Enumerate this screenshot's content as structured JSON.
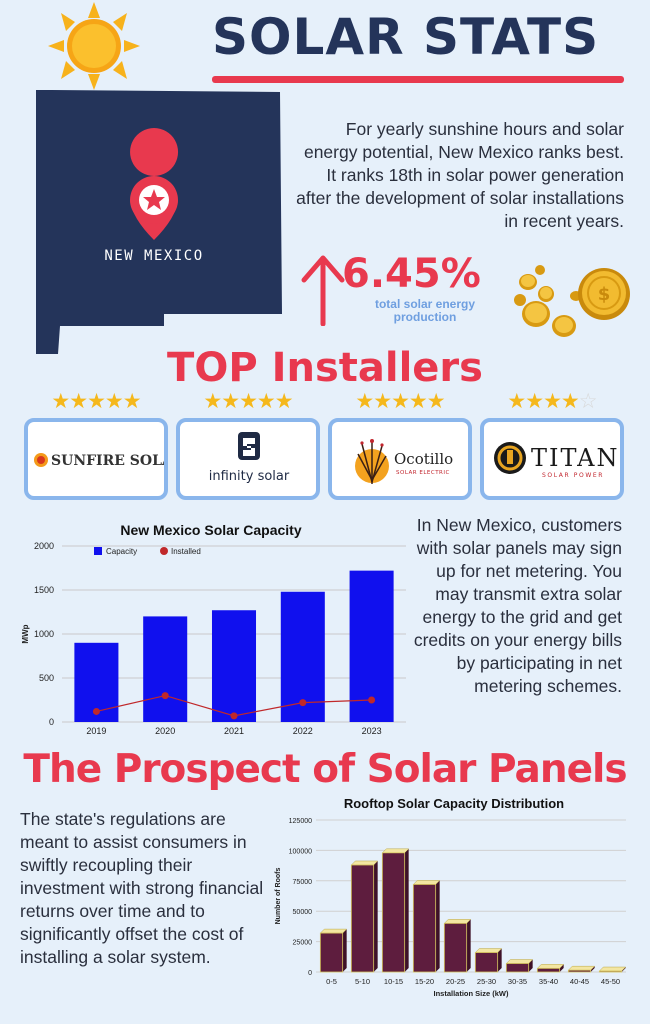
{
  "header": {
    "title": "SOLAR STATS"
  },
  "map": {
    "state_label": "NEW MEXICO"
  },
  "intro": {
    "text": "For yearly sunshine hours and solar energy potential, New Mexico ranks best. It ranks 18th in solar power generation after the development of solar installations in recent years."
  },
  "stat": {
    "value": "6.45%",
    "label": "total solar energy production"
  },
  "installers": {
    "title": "TOP Installers",
    "items": [
      {
        "name": "SUNFIRE SOLAR",
        "rating": 5
      },
      {
        "name": "infinity solar",
        "rating": 5
      },
      {
        "name": "Ocotillo",
        "subtitle": "SOLAR ELECTRIC",
        "rating": 5
      },
      {
        "name": "TITAN",
        "subtitle": "SOLAR POWER",
        "rating": 4.5
      }
    ]
  },
  "net_metering": {
    "text": "In New Mexico, customers with solar panels may sign up for net metering. You may transmit extra solar energy to the grid and get credits on your energy bills by participating in net metering schemes."
  },
  "prospect": {
    "title": "The Prospect of Solar Panels",
    "text": "The state's regulations are meant to assist consumers in swiftly recoupling their investment with strong financial returns over time and to significantly offset the cost of installing a solar system."
  },
  "colors": {
    "accent": "#e8394e",
    "navy": "#24345a",
    "capacity_bar": "#1010ee",
    "installed_line": "#c0282a",
    "rooftop_bar": "#5e1d3e"
  },
  "chart_data": [
    {
      "type": "bar",
      "title": "New Mexico Solar Capacity",
      "categories": [
        "2019",
        "2020",
        "2021",
        "2022",
        "2023"
      ],
      "series": [
        {
          "name": "Capacity",
          "type": "bar",
          "values": [
            900,
            1200,
            1270,
            1480,
            1720
          ]
        },
        {
          "name": "Installed",
          "type": "line",
          "values": [
            120,
            300,
            70,
            220,
            250
          ]
        }
      ],
      "xlabel": "",
      "ylabel": "MWp",
      "ylim": [
        0,
        2000
      ],
      "yticks": [
        0,
        500,
        1000,
        1500,
        2000
      ],
      "grid": true,
      "legend": "top-left"
    },
    {
      "type": "bar",
      "title": "Rooftop Solar Capacity Distribution",
      "categories": [
        "0-5",
        "5-10",
        "10-15",
        "15-20",
        "20-25",
        "25-30",
        "30-35",
        "35-40",
        "40-45",
        "45-50"
      ],
      "values": [
        32000,
        88000,
        98000,
        72000,
        40000,
        16000,
        7000,
        3000,
        1500,
        800
      ],
      "xlabel": "Installation Size (kW)",
      "ylabel": "Number of Roofs",
      "ylim": [
        0,
        125000
      ],
      "yticks": [
        0,
        25000,
        50000,
        75000,
        100000,
        125000
      ],
      "grid": true,
      "legend": "none"
    }
  ]
}
